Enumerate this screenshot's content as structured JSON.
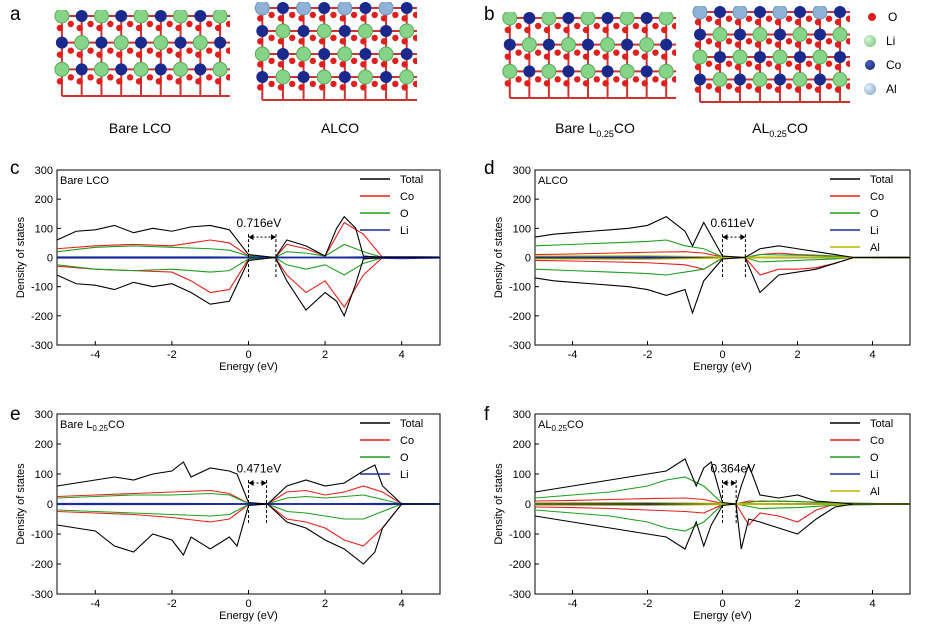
{
  "panel_letters": {
    "a": "a",
    "b": "b",
    "c": "c",
    "d": "d",
    "e": "e",
    "f": "f"
  },
  "structures": {
    "bare_lco": "Bare LCO",
    "alco": "ALCO",
    "bare_l025co": {
      "main": "Bare L",
      "sub": "0.25",
      "tail": "CO"
    },
    "al025co": {
      "main": "AL",
      "sub": "0.25",
      "tail": "CO"
    }
  },
  "atom_legend": [
    {
      "label": "O",
      "color": "#e0201e"
    },
    {
      "label": "Li",
      "color": "#86d487"
    },
    {
      "label": "Co",
      "color": "#1a2a8c"
    },
    {
      "label": "Al",
      "color": "#8fb3d6"
    }
  ],
  "series_colors": {
    "Total": "#000000",
    "Co": "#e8201a",
    "O": "#1f9e1f",
    "Li": "#1b2b9c",
    "Al": "#b8b800"
  },
  "chart_data": [
    {
      "id": "c",
      "type": "line",
      "title": "Bare LCO",
      "title_sub": "",
      "xlabel": "Energy (eV)",
      "ylabel": "Density of states",
      "xlim": [
        -5,
        5
      ],
      "ylim": [
        -300,
        300
      ],
      "xticks": [
        -4,
        -2,
        0,
        2,
        4
      ],
      "yticks": [
        300,
        200,
        100,
        0,
        -100,
        -200,
        -300
      ],
      "gap_label": "0.716eV",
      "gap": [
        0,
        0.716
      ],
      "legend": [
        "Total",
        "Co",
        "O",
        "Li"
      ],
      "series": [
        {
          "name": "Total",
          "x": [
            -5,
            -4.5,
            -4,
            -3.5,
            -3,
            -2.5,
            -2,
            -1.5,
            -1,
            -0.5,
            0,
            0.7,
            1,
            1.5,
            2,
            2.3,
            2.5,
            2.8,
            3,
            3.5,
            4,
            4.5,
            5
          ],
          "up": [
            60,
            90,
            95,
            110,
            85,
            100,
            90,
            105,
            110,
            95,
            10,
            0,
            60,
            40,
            5,
            100,
            140,
            100,
            5,
            0,
            0,
            0,
            0
          ],
          "down": [
            -60,
            -90,
            -95,
            -110,
            -85,
            -100,
            -90,
            -120,
            -160,
            -150,
            -10,
            0,
            -80,
            -180,
            -120,
            -150,
            -200,
            -90,
            -5,
            0,
            0,
            0,
            0
          ]
        },
        {
          "name": "Co",
          "x": [
            -5,
            -4,
            -3,
            -2,
            -1.5,
            -1,
            -0.5,
            0,
            0.7,
            1,
            1.5,
            2,
            2.5,
            3,
            3.5,
            4,
            5
          ],
          "up": [
            30,
            40,
            45,
            40,
            50,
            60,
            50,
            5,
            0,
            45,
            30,
            5,
            120,
            80,
            0,
            0,
            0
          ],
          "down": [
            -30,
            -40,
            -45,
            -50,
            -80,
            -120,
            -110,
            -5,
            0,
            -60,
            -120,
            -80,
            -170,
            -60,
            0,
            0,
            0
          ]
        },
        {
          "name": "O",
          "x": [
            -5,
            -4,
            -3,
            -2,
            -1,
            -0.5,
            0,
            0.7,
            1,
            1.5,
            2,
            2.5,
            3,
            3.5,
            5
          ],
          "up": [
            20,
            35,
            40,
            35,
            30,
            25,
            5,
            0,
            20,
            15,
            5,
            45,
            20,
            0,
            0
          ],
          "down": [
            -25,
            -40,
            -45,
            -40,
            -50,
            -45,
            -5,
            0,
            -25,
            -40,
            -25,
            -60,
            -20,
            0,
            0
          ]
        },
        {
          "name": "Li",
          "x": [
            -5,
            -3,
            -1,
            0,
            1,
            2,
            3,
            3.5,
            4,
            4.5,
            5
          ],
          "up": [
            2,
            2,
            2,
            1,
            1,
            1,
            2,
            3,
            3,
            3,
            2
          ],
          "down": [
            -2,
            -2,
            -2,
            -1,
            -1,
            -1,
            -2,
            -3,
            -4,
            -3,
            -2
          ]
        }
      ]
    },
    {
      "id": "d",
      "type": "line",
      "title": "ALCO",
      "title_sub": "",
      "xlabel": "Energy (eV)",
      "ylabel": "Density of states",
      "xlim": [
        -5,
        5
      ],
      "ylim": [
        -300,
        300
      ],
      "xticks": [
        -4,
        -2,
        0,
        2,
        4
      ],
      "yticks": [
        300,
        200,
        100,
        0,
        -100,
        -200,
        -300
      ],
      "gap_label": "0.611eV",
      "gap": [
        0,
        0.611
      ],
      "legend": [
        "Total",
        "Co",
        "O",
        "Li",
        "Al"
      ],
      "series": [
        {
          "name": "Total",
          "x": [
            -5,
            -4.5,
            -4,
            -3.5,
            -3,
            -2.5,
            -2,
            -1.5,
            -1,
            -0.8,
            -0.5,
            0,
            0.6,
            1,
            1.5,
            2,
            2.5,
            3,
            3.5,
            4,
            5
          ],
          "up": [
            70,
            80,
            85,
            90,
            95,
            100,
            110,
            140,
            90,
            40,
            120,
            5,
            0,
            30,
            40,
            30,
            20,
            10,
            0,
            0,
            0
          ],
          "down": [
            -70,
            -80,
            -85,
            -90,
            -95,
            -100,
            -110,
            -130,
            -110,
            -190,
            -80,
            -5,
            0,
            -120,
            -60,
            -50,
            -40,
            -20,
            0,
            0,
            0
          ]
        },
        {
          "name": "Co",
          "x": [
            -5,
            -4,
            -3,
            -2,
            -1,
            -0.5,
            0,
            0.6,
            1,
            1.5,
            2,
            2.5,
            3,
            3.5,
            5
          ],
          "up": [
            10,
            12,
            15,
            18,
            20,
            15,
            2,
            0,
            10,
            15,
            10,
            8,
            5,
            0,
            0
          ],
          "down": [
            -10,
            -12,
            -15,
            -18,
            -25,
            -40,
            -2,
            0,
            -60,
            -40,
            -40,
            -35,
            -20,
            0,
            0
          ]
        },
        {
          "name": "O",
          "x": [
            -5,
            -4,
            -3,
            -2,
            -1.5,
            -1,
            -0.5,
            0,
            0.6,
            1,
            2,
            3,
            3.5,
            5
          ],
          "up": [
            40,
            45,
            50,
            55,
            60,
            40,
            30,
            2,
            0,
            10,
            8,
            5,
            0,
            0
          ],
          "down": [
            -40,
            -45,
            -50,
            -55,
            -60,
            -50,
            -40,
            -2,
            0,
            -15,
            -10,
            -5,
            0,
            0
          ]
        },
        {
          "name": "Li",
          "x": [
            -5,
            -2,
            0,
            2,
            5
          ],
          "up": [
            3,
            3,
            1,
            1,
            2
          ],
          "down": [
            -3,
            -3,
            -1,
            -1,
            -2
          ]
        },
        {
          "name": "Al",
          "x": [
            -5,
            -2,
            0,
            2,
            5
          ],
          "up": [
            5,
            6,
            2,
            1,
            1
          ],
          "down": [
            -5,
            -6,
            -2,
            -1,
            -1
          ]
        }
      ]
    },
    {
      "id": "e",
      "type": "line",
      "title": "Bare L",
      "title_sub": "0.25",
      "title_tail": "CO",
      "xlabel": "Energy (eV)",
      "ylabel": "Density of states",
      "xlim": [
        -5,
        5
      ],
      "ylim": [
        -300,
        300
      ],
      "xticks": [
        -4,
        -2,
        0,
        2,
        4
      ],
      "yticks": [
        300,
        200,
        100,
        0,
        -100,
        -200,
        -300
      ],
      "gap_label": "0.471eV",
      "gap": [
        0,
        0.471
      ],
      "legend": [
        "Total",
        "Co",
        "O",
        "Li"
      ],
      "series": [
        {
          "name": "Total",
          "x": [
            -5,
            -4.5,
            -4,
            -3.5,
            -3,
            -2.5,
            -2,
            -1.7,
            -1.5,
            -1,
            -0.5,
            -0.3,
            0,
            0.5,
            1,
            1.5,
            2,
            2.5,
            3,
            3.3,
            3.5,
            4,
            5
          ],
          "up": [
            60,
            70,
            80,
            90,
            80,
            100,
            110,
            140,
            90,
            120,
            110,
            100,
            5,
            0,
            60,
            80,
            60,
            70,
            110,
            130,
            60,
            0,
            0
          ],
          "down": [
            -70,
            -80,
            -90,
            -140,
            -160,
            -100,
            -120,
            -170,
            -110,
            -150,
            -110,
            -140,
            -5,
            0,
            -60,
            -80,
            -120,
            -150,
            -200,
            -160,
            -80,
            0,
            0
          ]
        },
        {
          "name": "Co",
          "x": [
            -5,
            -4,
            -3,
            -2,
            -1,
            -0.5,
            0,
            0.5,
            1,
            1.5,
            2,
            2.5,
            3,
            3.5,
            4,
            5
          ],
          "up": [
            25,
            30,
            35,
            40,
            45,
            35,
            2,
            0,
            40,
            45,
            30,
            40,
            60,
            40,
            0,
            0
          ],
          "down": [
            -25,
            -30,
            -35,
            -45,
            -60,
            -50,
            -2,
            0,
            -50,
            -60,
            -80,
            -120,
            -140,
            -80,
            0,
            0
          ]
        },
        {
          "name": "O",
          "x": [
            -5,
            -4,
            -3,
            -2,
            -1,
            -0.5,
            0,
            0.5,
            1,
            1.5,
            2,
            2.5,
            3,
            3.5,
            4,
            5
          ],
          "up": [
            20,
            25,
            30,
            30,
            35,
            30,
            2,
            0,
            20,
            25,
            20,
            25,
            30,
            15,
            0,
            0
          ],
          "down": [
            -20,
            -25,
            -30,
            -35,
            -40,
            -35,
            -2,
            0,
            -25,
            -30,
            -40,
            -50,
            -50,
            -25,
            0,
            0
          ]
        },
        {
          "name": "Li",
          "x": [
            -5,
            -2,
            0,
            2,
            3.5,
            5
          ],
          "up": [
            2,
            2,
            1,
            1,
            2,
            1
          ],
          "down": [
            -2,
            -2,
            -1,
            -1,
            -2,
            -1
          ]
        }
      ]
    },
    {
      "id": "f",
      "type": "line",
      "title": "AL",
      "title_sub": "0.25",
      "title_tail": "CO",
      "xlabel": "Energy (eV)",
      "ylabel": "Density of states",
      "xlim": [
        -5,
        5
      ],
      "ylim": [
        -300,
        300
      ],
      "xticks": [
        -4,
        -2,
        0,
        2,
        4
      ],
      "yticks": [
        300,
        200,
        100,
        0,
        -100,
        -200,
        -300
      ],
      "gap_label": "0.364eV",
      "gap": [
        0,
        0.364
      ],
      "legend": [
        "Total",
        "Co",
        "O",
        "Li",
        "Al"
      ],
      "series": [
        {
          "name": "Total",
          "x": [
            -5,
            -4.5,
            -4,
            -3.5,
            -3,
            -2.5,
            -2,
            -1.5,
            -1,
            -0.7,
            -0.5,
            -0.3,
            0,
            0.36,
            0.5,
            0.7,
            1,
            1.5,
            2,
            2.5,
            3,
            3.5,
            4,
            5
          ],
          "up": [
            40,
            50,
            60,
            70,
            80,
            90,
            100,
            110,
            150,
            60,
            120,
            140,
            5,
            0,
            60,
            130,
            30,
            20,
            30,
            10,
            5,
            0,
            0,
            0
          ],
          "down": [
            -40,
            -50,
            -60,
            -70,
            -80,
            -90,
            -100,
            -110,
            -150,
            -60,
            -140,
            -70,
            -5,
            0,
            -150,
            -50,
            -60,
            -80,
            -100,
            -50,
            -10,
            0,
            0,
            0
          ]
        },
        {
          "name": "Co",
          "x": [
            -5,
            -4,
            -3,
            -2,
            -1,
            -0.5,
            0,
            0.36,
            0.7,
            1,
            1.5,
            2,
            2.5,
            3,
            5
          ],
          "up": [
            10,
            12,
            15,
            18,
            20,
            15,
            2,
            0,
            10,
            8,
            10,
            8,
            5,
            0,
            0
          ],
          "down": [
            -10,
            -12,
            -15,
            -20,
            -25,
            -30,
            -2,
            0,
            -70,
            -30,
            -40,
            -60,
            -20,
            0,
            0
          ]
        },
        {
          "name": "O",
          "x": [
            -5,
            -4,
            -3,
            -2,
            -1.5,
            -1,
            -0.5,
            0,
            0.36,
            1,
            2,
            3,
            5
          ],
          "up": [
            20,
            30,
            40,
            60,
            80,
            90,
            60,
            2,
            0,
            10,
            8,
            4,
            0
          ],
          "down": [
            -20,
            -30,
            -40,
            -60,
            -80,
            -90,
            -60,
            -2,
            0,
            -15,
            -12,
            -4,
            0
          ]
        },
        {
          "name": "Li",
          "x": [
            -5,
            -2,
            0,
            2,
            5
          ],
          "up": [
            2,
            2,
            1,
            1,
            1
          ],
          "down": [
            -2,
            -2,
            -1,
            -1,
            -1
          ]
        },
        {
          "name": "Al",
          "x": [
            -5,
            -2,
            0,
            2,
            5
          ],
          "up": [
            4,
            5,
            2,
            1,
            1
          ],
          "down": [
            -4,
            -5,
            -2,
            -1,
            -1
          ]
        }
      ]
    }
  ]
}
